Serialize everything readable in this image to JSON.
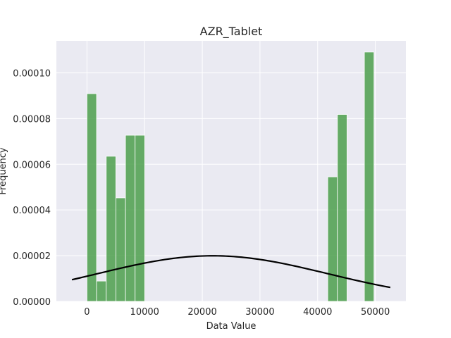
{
  "chart_data": {
    "type": "bar",
    "title": "AZR_Tablet",
    "xlabel": "Data Value",
    "ylabel": "Frequency",
    "xlim": [
      -5300,
      55300
    ],
    "ylim": [
      0,
      0.000114
    ],
    "grid": true,
    "x_ticks": [
      0,
      10000,
      20000,
      30000,
      40000,
      50000
    ],
    "x_tick_labels": [
      "0",
      "10000",
      "20000",
      "30000",
      "40000",
      "50000"
    ],
    "y_ticks": [
      0,
      2e-05,
      4e-05,
      6e-05,
      8e-05,
      0.0001
    ],
    "y_tick_labels": [
      "0.00000",
      "0.00002",
      "0.00004",
      "0.00006",
      "0.00008",
      "0.00010"
    ],
    "bar_color": "#4c9f4c",
    "curve_color": "#000000",
    "background": "#eaeaf2",
    "bins": [
      {
        "x0": 0,
        "x1": 1670,
        "value": 9.09e-05
      },
      {
        "x0": 1670,
        "x1": 3340,
        "value": 8.9e-06
      },
      {
        "x0": 3340,
        "x1": 5010,
        "value": 6.35e-05
      },
      {
        "x0": 5010,
        "x1": 6680,
        "value": 4.53e-05
      },
      {
        "x0": 6680,
        "x1": 8350,
        "value": 7.27e-05
      },
      {
        "x0": 8350,
        "x1": 10020,
        "value": 7.27e-05
      },
      {
        "x0": 41750,
        "x1": 43420,
        "value": 5.45e-05
      },
      {
        "x0": 43420,
        "x1": 45090,
        "value": 8.18e-05
      },
      {
        "x0": 48100,
        "x1": 49770,
        "value": 0.0001091
      }
    ],
    "normal_curve": {
      "mean": 21800,
      "std": 20000,
      "x_start": -2600,
      "x_end": 52600
    }
  }
}
